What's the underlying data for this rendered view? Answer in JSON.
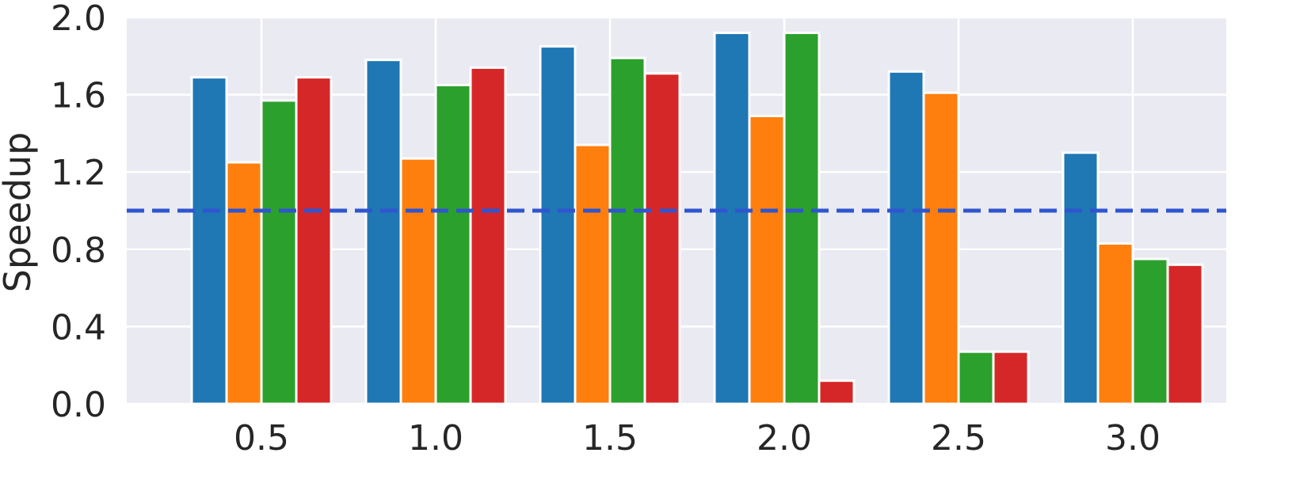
{
  "chart_data": {
    "type": "bar",
    "title": "",
    "xlabel": "",
    "ylabel": "Speedup",
    "categories": [
      "0.5",
      "1.0",
      "1.5",
      "2.0",
      "2.5",
      "3.0"
    ],
    "series": [
      {
        "color": "#1f77b4",
        "values": [
          1.69,
          1.78,
          1.85,
          1.92,
          1.72,
          1.3
        ]
      },
      {
        "color": "#ff7f0e",
        "values": [
          1.25,
          1.27,
          1.34,
          1.49,
          1.61,
          0.83
        ]
      },
      {
        "color": "#2ca02c",
        "values": [
          1.57,
          1.65,
          1.79,
          1.92,
          0.27,
          0.75
        ]
      },
      {
        "color": "#d62728",
        "values": [
          1.69,
          1.74,
          1.71,
          0.12,
          0.27,
          0.72
        ]
      }
    ],
    "ylim": [
      0,
      2.0
    ],
    "yticks": [
      "0.0",
      "0.4",
      "0.8",
      "1.2",
      "1.6",
      "2.0"
    ],
    "reference_line": {
      "value": 1.0,
      "style": "dashed",
      "color": "#2f55cf"
    },
    "grid": true,
    "background_color": "#eaeaf2",
    "legend": "none"
  }
}
